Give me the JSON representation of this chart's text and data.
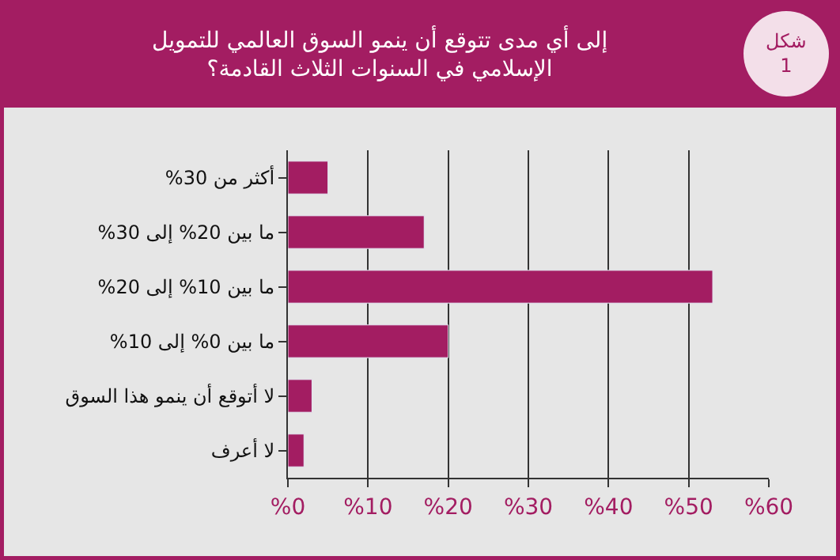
{
  "chart_data": {
    "type": "bar",
    "orientation": "horizontal",
    "title": "إلى أي مدى تتوقع أن ينمو السوق العالمي للتمويل\nالإسلامي في السنوات الثلاث القادمة؟",
    "annotations": [
      "شكل 1"
    ],
    "categories": [
      "أكثر من 30%",
      "ما بين 20% إلى 30%",
      "ما بين 10% إلى 20%",
      "ما بين 0% إلى 10%",
      "لا أتوقع أن ينمو هذا السوق",
      "لا أعرف"
    ],
    "values": [
      5,
      17,
      53,
      20,
      3,
      2
    ],
    "color": "#a31d62",
    "xlim": [
      0,
      60
    ],
    "xticks": [
      {
        "value": 0,
        "label": "%0"
      },
      {
        "value": 10,
        "label": "%10"
      },
      {
        "value": 20,
        "label": "%20"
      },
      {
        "value": 30,
        "label": "%30"
      },
      {
        "value": 40,
        "label": "%40"
      },
      {
        "value": 50,
        "label": "%50"
      },
      {
        "value": 60,
        "label": "%60"
      }
    ],
    "grid": "x",
    "legend": false
  }
}
